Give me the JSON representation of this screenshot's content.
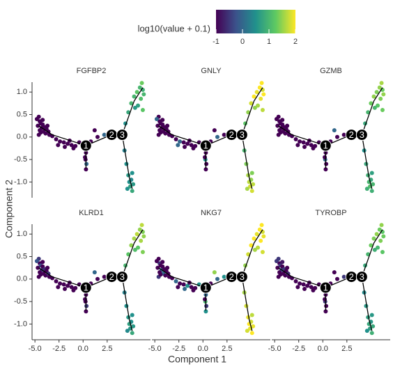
{
  "chart_data": {
    "type": "scatter",
    "x_label": "Component 1",
    "y_label": "Component 2",
    "colorbar": {
      "title": "log10(value + 0.1)",
      "lim": [
        -1,
        2
      ],
      "ticks": [
        -1,
        0,
        1,
        2
      ]
    },
    "xlim": [
      -5.3,
      7.0
    ],
    "ylim": [
      -1.35,
      1.22
    ],
    "xticks": [
      {
        "value": -5,
        "label": "-5.0"
      },
      {
        "value": -2.5,
        "label": "-2.5"
      },
      {
        "value": 0,
        "label": "0.0"
      },
      {
        "value": 2.5,
        "label": "2.5"
      }
    ],
    "yticks": [
      {
        "value": -1,
        "label": "-1.0"
      },
      {
        "value": -0.5,
        "label": "-0.5"
      },
      {
        "value": 0,
        "label": "0.0"
      },
      {
        "value": 0.5,
        "label": "0.5"
      },
      {
        "value": 1,
        "label": "1.0"
      }
    ],
    "x": [
      -4.6,
      -4.5,
      -4.4,
      -4.7,
      -4.3,
      -4.5,
      -4.2,
      -4.0,
      -4.1,
      -3.8,
      -3.9,
      -3.6,
      -4.6,
      -4.4,
      -3.5,
      -4.2,
      -4.8,
      -3.7,
      -3.2,
      -2.8,
      -2.4,
      -2.0,
      -1.6,
      -1.2,
      -0.8,
      -2.6,
      -1.9,
      -1.4,
      -0.4,
      -1.0,
      0.3,
      0.25,
      0.35,
      0.3,
      0.2,
      0.8,
      1.5,
      2.2,
      1.2,
      2.8,
      3.3,
      4.4,
      4.7,
      5.0,
      5.3,
      5.6,
      5.9,
      6.1,
      6.2,
      6.0,
      6.3,
      5.7,
      6.2,
      5.4,
      4.3,
      4.5,
      4.7,
      4.8,
      4.9,
      5.1,
      5.0,
      5.2,
      4.6,
      5.1
    ],
    "y": [
      0.45,
      0.35,
      0.3,
      0.25,
      0.2,
      0.15,
      0.28,
      0.22,
      0.12,
      0.18,
      0.08,
      0.12,
      0.05,
      0.1,
      0.05,
      0.38,
      0.4,
      0.25,
      0.02,
      -0.05,
      -0.1,
      -0.12,
      -0.15,
      -0.18,
      -0.2,
      -0.18,
      -0.22,
      -0.08,
      -0.12,
      -0.25,
      -0.35,
      -0.5,
      -0.6,
      -0.72,
      -0.45,
      -0.1,
      0.0,
      0.05,
      0.15,
      0.08,
      0.02,
      0.3,
      0.55,
      0.75,
      0.9,
      1.0,
      1.1,
      1.2,
      1.05,
      0.85,
      0.95,
      0.7,
      0.6,
      0.65,
      -0.3,
      -0.6,
      -0.85,
      -1.0,
      -1.1,
      -1.2,
      -0.95,
      -1.05,
      -1.15,
      -0.8
    ],
    "trajectory": {
      "x": [
        -4.6,
        -3.2,
        0.29,
        2.97,
        4.06,
        5.3,
        6.2,
        null,
        4.06,
        4.8,
        5.1,
        null,
        0.29,
        0.3
      ],
      "y": [
        0.25,
        0.05,
        -0.19,
        0.05,
        0.05,
        0.8,
        1.1,
        null,
        0.05,
        -0.9,
        -1.15,
        null,
        -0.19,
        -0.7
      ]
    },
    "branch_points": [
      {
        "label": "1",
        "x": 0.29,
        "y": -0.19
      },
      {
        "label": "2",
        "x": 2.97,
        "y": 0.05
      },
      {
        "label": "3",
        "x": 4.06,
        "y": 0.05
      }
    ],
    "facets": [
      {
        "title": "FGFBP2",
        "values": [
          -1,
          -1,
          -1,
          -1,
          -1,
          -1,
          -1,
          -1,
          -1,
          -1,
          -1,
          -1,
          -1,
          -1,
          -1,
          -1,
          -1,
          -1,
          -1,
          -1,
          -1,
          -1,
          -1,
          -1,
          -1,
          -1,
          -1,
          -1,
          -1,
          -1,
          -1,
          -1,
          0,
          -1,
          -1,
          -1,
          -1,
          0,
          -1,
          -0.5,
          -1,
          0.5,
          0.8,
          1,
          1,
          1.2,
          1,
          1.3,
          0.9,
          1.1,
          1,
          0.7,
          1.2,
          0.6,
          0.3,
          0.5,
          0.6,
          0.5,
          0.7,
          0.8,
          0.4,
          0.6,
          0.5,
          0.5
        ]
      },
      {
        "title": "GNLY",
        "values": [
          -1,
          -1,
          -1,
          -1,
          -1,
          -1,
          -1,
          -1,
          -1,
          -1,
          -1,
          -1,
          -1,
          -1,
          -1,
          -1,
          0,
          -1,
          -1,
          -1,
          0,
          -1,
          -1,
          -1,
          -1,
          0,
          -1,
          -1,
          -1,
          -1,
          -1,
          0.5,
          -1,
          -1,
          -1,
          -1,
          0,
          -1,
          -1,
          0.5,
          -1,
          1.2,
          1.5,
          1.8,
          2,
          1.9,
          2,
          2,
          1.8,
          1.9,
          2,
          1.6,
          1.7,
          1.5,
          1,
          1.4,
          1.6,
          1.7,
          1.8,
          1.8,
          1.5,
          1.7,
          1.6,
          1.4
        ]
      },
      {
        "title": "GZMB",
        "values": [
          -1,
          -1,
          -1,
          -1,
          -1,
          -1,
          -1,
          -1,
          -1,
          -1,
          -1,
          -1,
          -1,
          -1,
          -1,
          -1,
          -1,
          -1,
          -1,
          -1,
          -1,
          -1,
          -1,
          -1,
          -1,
          -1,
          -1,
          -1,
          -1,
          -1,
          -1,
          0,
          -1,
          -1,
          -1,
          -1,
          -1,
          -1,
          0,
          -1,
          -1,
          0.8,
          1,
          1.3,
          1.5,
          1.4,
          1.5,
          1.6,
          1.3,
          1.4,
          1.5,
          1.2,
          1.3,
          1,
          0.5,
          0.8,
          0.9,
          1,
          1.1,
          0.9,
          0.8,
          1,
          0.9,
          0.7
        ]
      },
      {
        "title": "KLRD1",
        "values": [
          -0.5,
          -1,
          -0.3,
          -1,
          -0.5,
          -1,
          -1,
          -0.6,
          -1,
          -1,
          -1,
          -0.5,
          -1,
          -1,
          -1,
          -1,
          -0.2,
          -1,
          -1,
          -1,
          -1,
          -1,
          -1,
          -1,
          -1,
          -1,
          -1,
          -1,
          -1,
          -1,
          -1,
          -1,
          -0.5,
          -1,
          -1,
          -1,
          -1,
          -1,
          0,
          -1,
          -1,
          1,
          1.2,
          1.5,
          1.6,
          1.7,
          1.5,
          1.7,
          1.4,
          1.6,
          1.5,
          1.2,
          1.4,
          1.1,
          0.3,
          0.5,
          0.6,
          0.7,
          0.6,
          0.8,
          0.5,
          0.6,
          0.4,
          0.5
        ]
      },
      {
        "title": "NKG7",
        "values": [
          -1,
          -0.5,
          -1,
          -1,
          0,
          -1,
          -1,
          -1,
          0,
          -1,
          -1,
          -1,
          -0.5,
          -1,
          -1,
          -1,
          -1,
          -1,
          -1,
          0,
          -1,
          -1,
          0.5,
          -1,
          -1,
          -1,
          0,
          -1,
          0.5,
          -1,
          0,
          1,
          -0.5,
          0.5,
          -1,
          -1,
          0,
          0.5,
          1.5,
          -1,
          0,
          1.5,
          1.8,
          2,
          2,
          1.9,
          2,
          2,
          1.8,
          2,
          1.9,
          1.7,
          1.8,
          1.6,
          1.6,
          1.8,
          1.9,
          2,
          1.9,
          2,
          1.8,
          1.9,
          1.8,
          1.7
        ]
      },
      {
        "title": "TYROBP",
        "values": [
          -0.5,
          -1,
          -0.5,
          -1,
          -0.3,
          -1,
          -1,
          -0.5,
          -1,
          -1,
          -1,
          -0.6,
          -1,
          -1,
          -1,
          -0.8,
          -0.5,
          -1,
          -1,
          -1,
          -1,
          -1,
          -1,
          -1,
          -1,
          -1,
          -1,
          -1,
          -1,
          -1,
          -1,
          -0.5,
          -1,
          -1,
          -1,
          -1,
          -1,
          -0.5,
          -1,
          -1,
          -1,
          0.8,
          1,
          1.3,
          1.4,
          1.5,
          1.3,
          1.5,
          1.2,
          1.4,
          1.3,
          1,
          1.2,
          0.9,
          0.4,
          0.6,
          0.7,
          0.8,
          0.7,
          0.9,
          0.6,
          0.8,
          0.5,
          0.6
        ]
      }
    ]
  }
}
